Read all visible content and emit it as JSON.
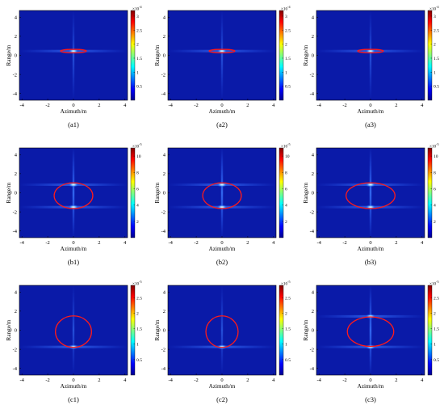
{
  "chart_data": [
    {
      "type": "heatmap",
      "panel": "(a1)",
      "xlabel": "Azimuth/m",
      "ylabel": "Range/m",
      "xticks": [
        -4,
        -2,
        0,
        2,
        4
      ],
      "yticks": [
        4,
        2,
        0,
        -2,
        -4
      ],
      "xlim": [
        -4.2,
        4.2
      ],
      "ylim": [
        -4.7,
        4.7
      ],
      "colorbar": {
        "ticks": [
          "0.5",
          "1",
          "1.5",
          "2",
          "2.5",
          "3"
        ],
        "values": [
          0.5,
          1,
          1.5,
          2,
          2.5,
          3
        ],
        "range": [
          0,
          3.2
        ],
        "exponent": "×10^-4"
      },
      "ellipse": {
        "cx": 0,
        "cy": 0.45,
        "rx": 1.0,
        "ry": 0.18
      },
      "peaks": [
        {
          "x": 0,
          "y": 0.45
        }
      ],
      "colormap": "jet",
      "grid": false
    },
    {
      "type": "heatmap",
      "panel": "(a2)",
      "xlabel": "Azimuth/m",
      "ylabel": "Range/m",
      "xticks": [
        -4,
        -2,
        0,
        2,
        4
      ],
      "yticks": [
        4,
        2,
        0,
        -2,
        -4
      ],
      "xlim": [
        -4.2,
        4.2
      ],
      "ylim": [
        -4.7,
        4.7
      ],
      "colorbar": {
        "ticks": [
          "0.5",
          "1",
          "1.5",
          "2",
          "2.5",
          "3"
        ],
        "values": [
          0.5,
          1,
          1.5,
          2,
          2.5,
          3
        ],
        "range": [
          0,
          3.2
        ],
        "exponent": "×10^-4"
      },
      "ellipse": {
        "cx": 0,
        "cy": 0.45,
        "rx": 1.0,
        "ry": 0.18
      },
      "peaks": [
        {
          "x": 0,
          "y": 0.45
        }
      ],
      "colormap": "jet",
      "grid": false
    },
    {
      "type": "heatmap",
      "panel": "(a3)",
      "xlabel": "Azimuth/m",
      "ylabel": "Range/m",
      "xticks": [
        -4,
        -2,
        0,
        2,
        4
      ],
      "yticks": [
        4,
        2,
        0,
        -2,
        -4
      ],
      "xlim": [
        -4.2,
        4.2
      ],
      "ylim": [
        -4.7,
        4.7
      ],
      "colorbar": {
        "ticks": [
          "0.5",
          "1",
          "1.5",
          "2",
          "2.5",
          "3"
        ],
        "values": [
          0.5,
          1,
          1.5,
          2,
          2.5,
          3
        ],
        "range": [
          0,
          3.2
        ],
        "exponent": "×10^-4"
      },
      "ellipse": {
        "cx": 0,
        "cy": 0.45,
        "rx": 1.0,
        "ry": 0.18
      },
      "peaks": [
        {
          "x": 0,
          "y": 0.45
        }
      ],
      "colormap": "jet",
      "grid": false
    },
    {
      "type": "heatmap",
      "panel": "(b1)",
      "xlabel": "Azimuth/m",
      "ylabel": "Range/m",
      "xticks": [
        -4,
        -2,
        0,
        2,
        4
      ],
      "yticks": [
        4,
        2,
        0,
        -2,
        -4
      ],
      "xlim": [
        -4.2,
        4.2
      ],
      "ylim": [
        -4.7,
        4.7
      ],
      "colorbar": {
        "ticks": [
          "2",
          "4",
          "6",
          "8",
          "10"
        ],
        "values": [
          2,
          4,
          6,
          8,
          10
        ],
        "range": [
          0,
          11
        ],
        "exponent": "×10^-5"
      },
      "ellipse": {
        "cx": 0,
        "cy": -0.3,
        "rx": 1.5,
        "ry": 1.35
      },
      "peaks": [
        {
          "x": 0,
          "y": 0.85
        },
        {
          "x": 0,
          "y": -1.5
        }
      ],
      "colormap": "jet",
      "grid": false
    },
    {
      "type": "heatmap",
      "panel": "(b2)",
      "xlabel": "Azimuth/m",
      "ylabel": "Range/m",
      "xticks": [
        -4,
        -2,
        0,
        2,
        4
      ],
      "yticks": [
        4,
        2,
        0,
        -2,
        -4
      ],
      "xlim": [
        -4.2,
        4.2
      ],
      "ylim": [
        -4.7,
        4.7
      ],
      "colorbar": {
        "ticks": [
          "2",
          "4",
          "6",
          "8",
          "10"
        ],
        "values": [
          2,
          4,
          6,
          8,
          10
        ],
        "range": [
          0,
          11
        ],
        "exponent": "×10^-5"
      },
      "ellipse": {
        "cx": 0,
        "cy": -0.3,
        "rx": 1.5,
        "ry": 1.35
      },
      "peaks": [
        {
          "x": 0,
          "y": 0.85
        },
        {
          "x": 0,
          "y": -1.5
        }
      ],
      "colormap": "jet",
      "grid": false
    },
    {
      "type": "heatmap",
      "panel": "(b3)",
      "xlabel": "Azimuth/m",
      "ylabel": "Range/m",
      "xticks": [
        -4,
        -2,
        0,
        2,
        4
      ],
      "yticks": [
        4,
        2,
        0,
        -2,
        -4
      ],
      "xlim": [
        -4.2,
        4.2
      ],
      "ylim": [
        -4.7,
        4.7
      ],
      "colorbar": {
        "ticks": [
          "2",
          "4",
          "6",
          "8",
          "10"
        ],
        "values": [
          2,
          4,
          6,
          8,
          10
        ],
        "range": [
          0,
          11
        ],
        "exponent": "×10^-5"
      },
      "ellipse": {
        "cx": 0,
        "cy": -0.3,
        "rx": 1.9,
        "ry": 1.35
      },
      "peaks": [
        {
          "x": 0,
          "y": 0.85
        },
        {
          "x": 0,
          "y": -1.5
        }
      ],
      "colormap": "jet",
      "grid": false
    },
    {
      "type": "heatmap",
      "panel": "(c1)",
      "xlabel": "Azimuth/m",
      "ylabel": "Range/m",
      "xticks": [
        -4,
        -2,
        0,
        2,
        4
      ],
      "yticks": [
        4,
        2,
        0,
        -2,
        -4
      ],
      "xlim": [
        -4.2,
        4.2
      ],
      "ylim": [
        -4.7,
        4.7
      ],
      "colorbar": {
        "ticks": [
          "0.5",
          "1",
          "1.5",
          "2",
          "2.5"
        ],
        "values": [
          0.5,
          1,
          1.5,
          2,
          2.5
        ],
        "range": [
          0,
          2.9
        ],
        "exponent": "×10^-5"
      },
      "ellipse": {
        "cx": 0,
        "cy": -0.15,
        "rx": 1.4,
        "ry": 1.65
      },
      "peaks": [
        {
          "x": 0,
          "y": -1.75
        }
      ],
      "colormap": "jet",
      "grid": false
    },
    {
      "type": "heatmap",
      "panel": "(c2)",
      "xlabel": "Azimuth/m",
      "ylabel": "Range/m",
      "xticks": [
        -4,
        -2,
        0,
        2,
        4
      ],
      "yticks": [
        4,
        2,
        0,
        -2,
        -4
      ],
      "xlim": [
        -4.2,
        4.2
      ],
      "ylim": [
        -4.7,
        4.7
      ],
      "colorbar": {
        "ticks": [
          "0.5",
          "1",
          "1.5",
          "2",
          "2.5"
        ],
        "values": [
          0.5,
          1,
          1.5,
          2,
          2.5
        ],
        "range": [
          0,
          2.9
        ],
        "exponent": "×10^-5"
      },
      "ellipse": {
        "cx": 0,
        "cy": -0.15,
        "rx": 1.25,
        "ry": 1.65
      },
      "peaks": [
        {
          "x": 0,
          "y": -1.75
        }
      ],
      "colormap": "jet",
      "grid": false
    },
    {
      "type": "heatmap",
      "panel": "(c3)",
      "xlabel": "Azimuth/m",
      "ylabel": "Range/m",
      "xticks": [
        -4,
        -2,
        0,
        2,
        4
      ],
      "yticks": [
        4,
        2,
        0,
        -2,
        -4
      ],
      "xlim": [
        -4.2,
        4.2
      ],
      "ylim": [
        -4.7,
        4.7
      ],
      "colorbar": {
        "ticks": [
          "0.5",
          "1",
          "1.5",
          "2",
          "2.5"
        ],
        "values": [
          0.5,
          1,
          1.5,
          2,
          2.5
        ],
        "range": [
          0,
          2.9
        ],
        "exponent": "×10^-5"
      },
      "ellipse": {
        "cx": 0,
        "cy": -0.15,
        "rx": 1.8,
        "ry": 1.55
      },
      "peaks": [
        {
          "x": 0,
          "y": 1.45
        },
        {
          "x": 0,
          "y": -1.75
        }
      ],
      "colormap": "jet",
      "grid": false
    }
  ],
  "colors": {
    "background": "#0a1aa8",
    "ellipse": "#ff1a1a",
    "peak": "#e6f2ff",
    "axis": "#000000"
  }
}
